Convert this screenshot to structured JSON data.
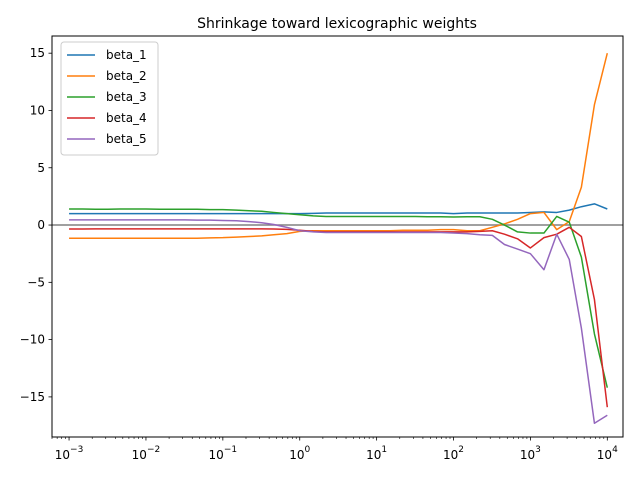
{
  "chart_data": {
    "type": "line",
    "title": "Shrinkage toward lexicographic weights",
    "xlabel": "",
    "ylabel": "",
    "xscale": "log",
    "xlim": [
      0.0006,
      16000
    ],
    "ylim": [
      -18.5,
      16.5
    ],
    "xticks": [
      {
        "value": 0.001,
        "base": "10",
        "exp": "−3"
      },
      {
        "value": 0.01,
        "base": "10",
        "exp": "−2"
      },
      {
        "value": 0.1,
        "base": "10",
        "exp": "−1"
      },
      {
        "value": 1,
        "base": "10",
        "exp": "0"
      },
      {
        "value": 10,
        "base": "10",
        "exp": "1"
      },
      {
        "value": 100,
        "base": "10",
        "exp": "2"
      },
      {
        "value": 1000,
        "base": "10",
        "exp": "3"
      },
      {
        "value": 10000,
        "base": "10",
        "exp": "4"
      }
    ],
    "yticks": [
      {
        "value": 15,
        "label": "15"
      },
      {
        "value": 10,
        "label": "10"
      },
      {
        "value": 5,
        "label": "5"
      },
      {
        "value": 0,
        "label": "0"
      },
      {
        "value": -5,
        "label": "−5"
      },
      {
        "value": -10,
        "label": "−10"
      },
      {
        "value": -15,
        "label": "−15"
      }
    ],
    "hline": {
      "value": 0,
      "color": "#808080"
    },
    "legend_position": "top-left",
    "x": [
      0.001,
      0.0015,
      0.0022,
      0.0032,
      0.0046,
      0.0068,
      0.01,
      0.015,
      0.022,
      0.032,
      0.046,
      0.068,
      0.1,
      0.15,
      0.22,
      0.32,
      0.46,
      0.68,
      1,
      1.5,
      2.2,
      3.2,
      4.6,
      6.8,
      10,
      15,
      22,
      32,
      46,
      68,
      100,
      150,
      220,
      320,
      460,
      680,
      1000,
      1500,
      2200,
      3200,
      4600,
      6800,
      10000
    ],
    "series": [
      {
        "name": "beta_1",
        "color": "#1f77b4",
        "values": [
          1.0,
          1.0,
          1.0,
          1.0,
          1.0,
          1.0,
          1.0,
          1.0,
          1.0,
          1.0,
          1.0,
          1.0,
          1.0,
          1.0,
          1.0,
          1.0,
          1.0,
          1.0,
          1.0,
          1.02,
          1.05,
          1.05,
          1.05,
          1.05,
          1.05,
          1.05,
          1.05,
          1.05,
          1.05,
          1.05,
          1.0,
          1.05,
          1.05,
          1.05,
          1.05,
          1.05,
          1.1,
          1.15,
          1.1,
          1.3,
          1.6,
          1.85,
          1.4
        ]
      },
      {
        "name": "beta_2",
        "color": "#ff7f0e",
        "values": [
          -1.15,
          -1.15,
          -1.15,
          -1.15,
          -1.15,
          -1.15,
          -1.15,
          -1.15,
          -1.15,
          -1.15,
          -1.15,
          -1.12,
          -1.1,
          -1.05,
          -1.0,
          -0.95,
          -0.85,
          -0.75,
          -0.55,
          -0.5,
          -0.5,
          -0.5,
          -0.5,
          -0.5,
          -0.5,
          -0.5,
          -0.45,
          -0.45,
          -0.45,
          -0.4,
          -0.4,
          -0.5,
          -0.5,
          -0.2,
          0.1,
          0.5,
          1.0,
          1.1,
          -0.4,
          0.3,
          3.3,
          10.5,
          15.0
        ]
      },
      {
        "name": "beta_3",
        "color": "#2ca02c",
        "values": [
          1.4,
          1.4,
          1.38,
          1.38,
          1.4,
          1.4,
          1.4,
          1.38,
          1.38,
          1.38,
          1.38,
          1.35,
          1.35,
          1.3,
          1.25,
          1.2,
          1.1,
          1.0,
          0.9,
          0.8,
          0.75,
          0.75,
          0.75,
          0.75,
          0.75,
          0.75,
          0.75,
          0.75,
          0.72,
          0.72,
          0.7,
          0.72,
          0.72,
          0.5,
          0.0,
          -0.6,
          -0.7,
          -0.7,
          0.75,
          0.25,
          -2.8,
          -9.5,
          -14.2
        ]
      },
      {
        "name": "beta_4",
        "color": "#d62728",
        "values": [
          -0.35,
          -0.35,
          -0.33,
          -0.33,
          -0.33,
          -0.33,
          -0.33,
          -0.33,
          -0.33,
          -0.33,
          -0.33,
          -0.33,
          -0.33,
          -0.33,
          -0.33,
          -0.33,
          -0.35,
          -0.38,
          -0.45,
          -0.55,
          -0.6,
          -0.6,
          -0.6,
          -0.6,
          -0.6,
          -0.6,
          -0.6,
          -0.6,
          -0.6,
          -0.6,
          -0.6,
          -0.6,
          -0.55,
          -0.5,
          -0.8,
          -1.2,
          -2.0,
          -1.1,
          -0.8,
          -0.2,
          -1.0,
          -6.5,
          -15.9
        ]
      },
      {
        "name": "beta_5",
        "color": "#9467bd",
        "values": [
          0.45,
          0.45,
          0.45,
          0.45,
          0.45,
          0.45,
          0.45,
          0.45,
          0.45,
          0.45,
          0.43,
          0.43,
          0.4,
          0.38,
          0.3,
          0.2,
          0.05,
          -0.2,
          -0.5,
          -0.6,
          -0.65,
          -0.65,
          -0.65,
          -0.65,
          -0.65,
          -0.65,
          -0.65,
          -0.65,
          -0.65,
          -0.65,
          -0.7,
          -0.75,
          -0.85,
          -0.9,
          -1.7,
          -2.1,
          -2.5,
          -3.9,
          -0.8,
          -3.0,
          -9.0,
          -17.3,
          -16.6
        ]
      }
    ]
  }
}
